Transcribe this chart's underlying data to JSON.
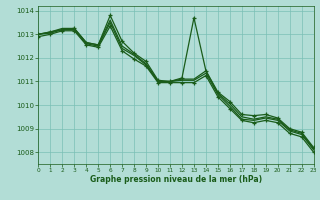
{
  "title": "Graphe pression niveau de la mer (hPa)",
  "background_color": "#b2ddd6",
  "grid_color": "#7bbfb5",
  "line_color": "#1a5c1a",
  "xlim": [
    0,
    23
  ],
  "ylim": [
    1007.5,
    1014.2
  ],
  "yticks": [
    1008,
    1009,
    1010,
    1011,
    1012,
    1013,
    1014
  ],
  "xticks": [
    0,
    1,
    2,
    3,
    4,
    5,
    6,
    7,
    8,
    9,
    10,
    11,
    12,
    13,
    14,
    15,
    16,
    17,
    18,
    19,
    20,
    21,
    22,
    23
  ],
  "series": [
    {
      "y": [
        1013.0,
        1013.1,
        1013.2,
        1013.25,
        1012.65,
        1012.55,
        1013.8,
        1012.7,
        1012.2,
        1011.85,
        1011.05,
        1011.0,
        1011.15,
        1013.7,
        1011.45,
        1010.55,
        1010.15,
        1009.6,
        1009.55,
        1009.6,
        1009.45,
        1009.0,
        1008.85,
        1008.2
      ],
      "marker": true,
      "lw": 0.9
    },
    {
      "y": [
        1013.0,
        1013.1,
        1013.25,
        1013.25,
        1012.65,
        1012.55,
        1013.6,
        1012.5,
        1012.15,
        1011.75,
        1011.0,
        1011.0,
        1011.1,
        1011.1,
        1011.45,
        1010.5,
        1010.05,
        1009.5,
        1009.4,
        1009.5,
        1009.4,
        1008.95,
        1008.8,
        1008.15
      ],
      "marker": false,
      "lw": 0.9
    },
    {
      "y": [
        1013.0,
        1013.05,
        1013.2,
        1013.2,
        1012.6,
        1012.5,
        1013.5,
        1012.4,
        1012.1,
        1011.7,
        1011.0,
        1011.0,
        1011.05,
        1011.05,
        1011.35,
        1010.45,
        1009.95,
        1009.4,
        1009.35,
        1009.45,
        1009.35,
        1008.9,
        1008.75,
        1008.1
      ],
      "marker": false,
      "lw": 0.9
    },
    {
      "y": [
        1012.9,
        1013.0,
        1013.15,
        1013.15,
        1012.55,
        1012.45,
        1013.35,
        1012.3,
        1011.95,
        1011.65,
        1010.95,
        1010.95,
        1010.95,
        1010.95,
        1011.25,
        1010.35,
        1009.85,
        1009.35,
        1009.25,
        1009.35,
        1009.25,
        1008.8,
        1008.65,
        1008.0
      ],
      "marker": true,
      "lw": 0.9
    }
  ],
  "xlabel_fontsize": 5.5,
  "ytick_fontsize": 5,
  "xtick_fontsize": 4.2
}
